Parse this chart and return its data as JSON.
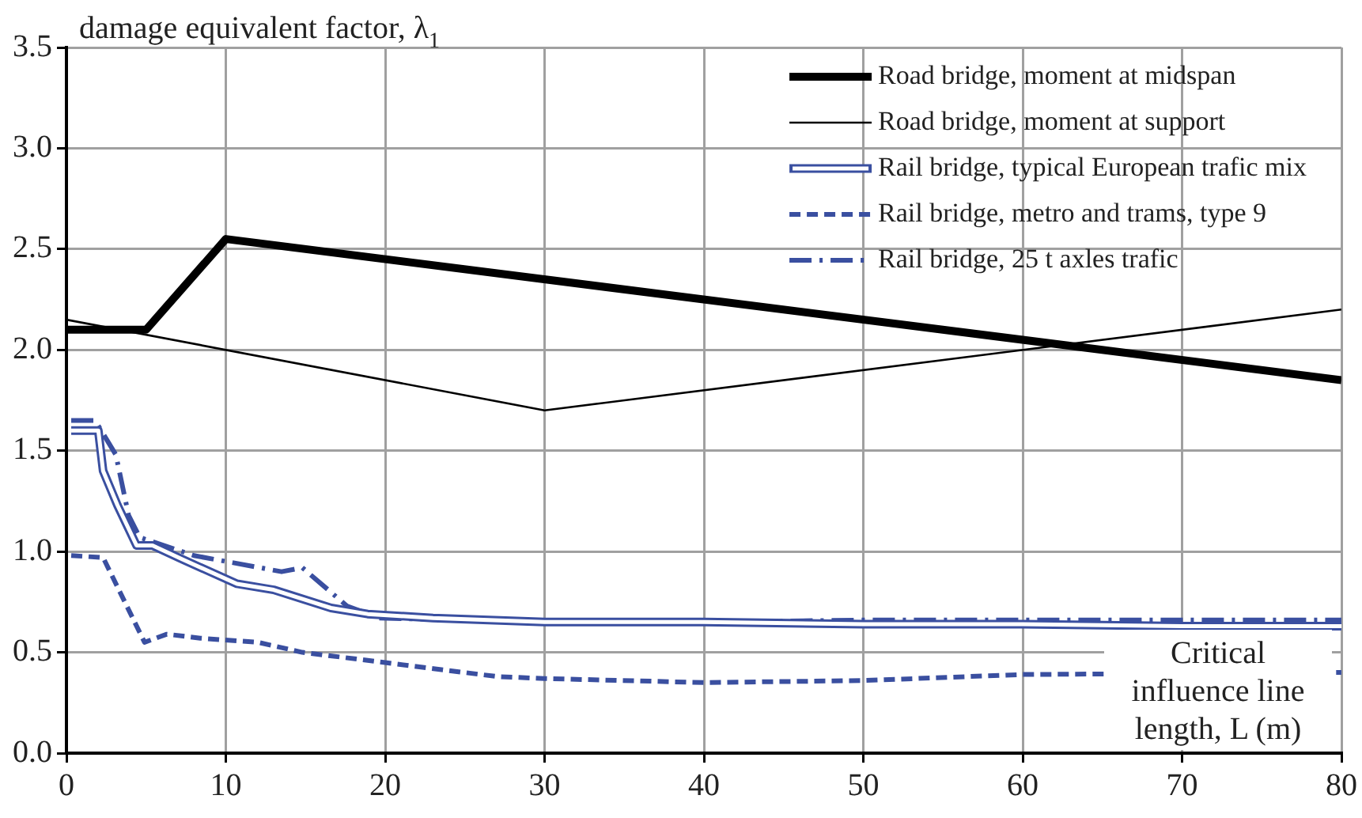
{
  "chart_data": {
    "type": "line",
    "ylabel": "damage equivalent factor, λ$_{1}$",
    "xlabel": "Critical influence line length, L (m)",
    "xlim": [
      0,
      80
    ],
    "xticks": [
      0,
      10,
      20,
      30,
      40,
      50,
      60,
      70,
      80
    ],
    "ylim": [
      0,
      3.5
    ],
    "yticks": [
      {
        "value": 0,
        "label": "0.0"
      },
      0.5,
      {
        "value": 1,
        "label": "1.0"
      },
      1.5,
      {
        "value": 2,
        "label": "2.0"
      },
      2.5,
      {
        "value": 3,
        "label": "3.0"
      },
      3.5
    ],
    "grid": true,
    "legend": "top right",
    "marker": "none",
    "series": [
      {
        "name": "Road bridge, moment at midspan",
        "color": "#000000",
        "line_style": "solid",
        "x": [
          0,
          5,
          10,
          80
        ],
        "values": [
          2.1,
          2.1,
          2.55,
          1.85
        ]
      },
      {
        "name": "Road bridge, moment at support",
        "color": "#000000",
        "line_style": "solid",
        "x": [
          0,
          30,
          80
        ],
        "values": [
          2.15,
          1.7,
          2.2
        ]
      },
      {
        "name": "Rail bridge, typical European trafic mix",
        "color": "#3a4fa0",
        "line_style": "solid",
        "x": [
          0.3,
          2,
          2.3,
          3.2,
          4.4,
          5.4,
          7.3,
          10.7,
          13,
          16.6,
          18.9,
          23,
          30,
          40,
          50,
          60,
          70,
          80
        ],
        "values": [
          1.6,
          1.6,
          1.4,
          1.23,
          1.03,
          1.03,
          0.96,
          0.84,
          0.81,
          0.72,
          0.69,
          0.67,
          0.65,
          0.65,
          0.64,
          0.64,
          0.63,
          0.63
        ]
      },
      {
        "name": "Rail bridge, metro and trams, type 9",
        "color": "#3a4fa0",
        "line_style": "dotted",
        "x": [
          0.3,
          2.3,
          4.9,
          6.3,
          8.4,
          12,
          14.8,
          19.9,
          27,
          30,
          40,
          50,
          60,
          80
        ],
        "values": [
          0.98,
          0.97,
          0.55,
          0.59,
          0.57,
          0.55,
          0.5,
          0.45,
          0.38,
          0.37,
          0.35,
          0.36,
          0.39,
          0.4
        ]
      },
      {
        "name": "Rail bridge, 25 t axles trafic",
        "color": "#3a4fa0",
        "line_style": "dashed",
        "x": [
          0.3,
          1.8,
          3.1,
          3.9,
          4.6,
          8,
          13.5,
          14.8,
          17.6,
          19.6,
          30,
          40,
          50,
          60,
          70,
          80
        ],
        "values": [
          1.65,
          1.65,
          1.48,
          1.18,
          1.07,
          0.98,
          0.9,
          0.92,
          0.73,
          0.67,
          0.65,
          0.65,
          0.66,
          0.66,
          0.66,
          0.66
        ]
      }
    ]
  }
}
